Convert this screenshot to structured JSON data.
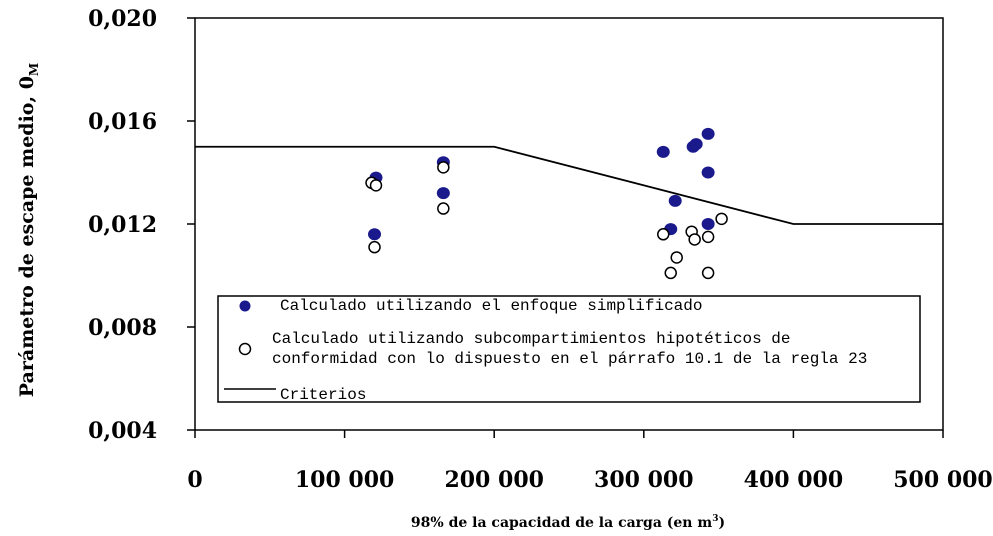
{
  "chart_data": {
    "type": "scatter",
    "ylabel": "Parámetro de escape medio,  0",
    "ylabel_subscript": "M",
    "xlabel": "98% de la capacidad de la carga (en m",
    "xlabel_superscript": "3",
    "xlabel_suffix": ")",
    "xlim": [
      0,
      500000
    ],
    "ylim": [
      0.004,
      0.02
    ],
    "x_ticks": [
      0,
      100000,
      200000,
      300000,
      400000,
      500000
    ],
    "x_tick_labels": [
      "0",
      "100 000",
      "200 000",
      "300 000",
      "400 000",
      "500 000"
    ],
    "y_ticks": [
      0.004,
      0.008,
      0.012,
      0.016,
      0.02
    ],
    "y_tick_labels": [
      "0,004",
      "0,008",
      "0,012",
      "0,016",
      "0,020"
    ],
    "grid": false,
    "legend_position": "bottom-center",
    "colors": {
      "simplified": "#1a1a8c",
      "criteria": "#000000"
    },
    "series": [
      {
        "name": "Calculado utilizando el enfoque simplificado",
        "marker": "filled-circle",
        "points": [
          [
            121000,
            0.0138
          ],
          [
            120000,
            0.0116
          ],
          [
            166000,
            0.0144
          ],
          [
            166000,
            0.0132
          ],
          [
            313000,
            0.0148
          ],
          [
            318000,
            0.0118
          ],
          [
            321000,
            0.0129
          ],
          [
            333000,
            0.015
          ],
          [
            335000,
            0.0151
          ],
          [
            343000,
            0.0155
          ],
          [
            343000,
            0.014
          ],
          [
            343000,
            0.012
          ]
        ]
      },
      {
        "name_line1": "Calculado utilizando subcompartimientos hipotéticos de",
        "name_line2": "conformidad con lo dispuesto en el párrafo 10.1 de la regla 23",
        "marker": "open-circle",
        "points": [
          [
            118000,
            0.0136
          ],
          [
            121000,
            0.0135
          ],
          [
            120000,
            0.0111
          ],
          [
            166000,
            0.0142
          ],
          [
            166000,
            0.0126
          ],
          [
            313000,
            0.0116
          ],
          [
            318000,
            0.0101
          ],
          [
            322000,
            0.0107
          ],
          [
            332000,
            0.0117
          ],
          [
            334000,
            0.0114
          ],
          [
            343000,
            0.0115
          ],
          [
            352000,
            0.0122
          ],
          [
            343000,
            0.0101
          ]
        ]
      },
      {
        "name": "Criterios",
        "marker": "line",
        "points": [
          [
            0,
            0.015
          ],
          [
            200000,
            0.015
          ],
          [
            400000,
            0.012
          ],
          [
            500000,
            0.012
          ]
        ]
      }
    ]
  }
}
